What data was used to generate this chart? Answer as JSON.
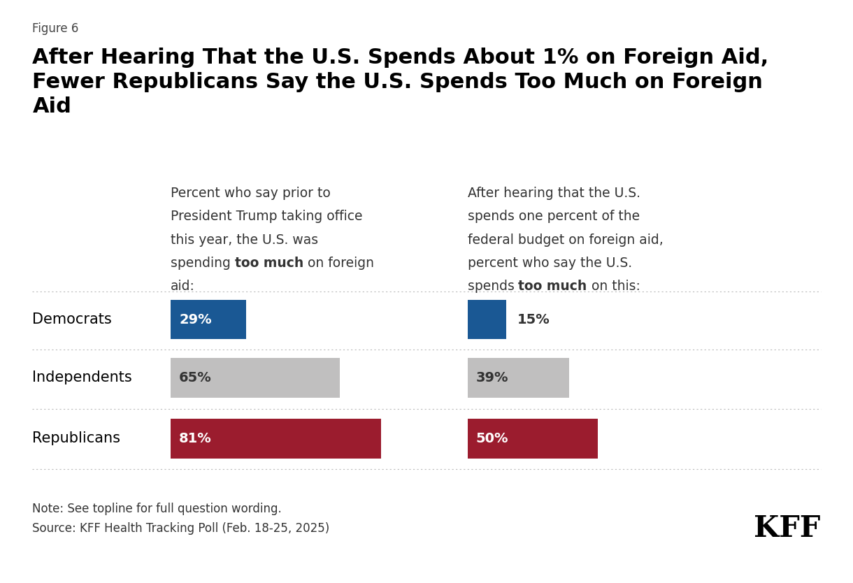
{
  "figure_label": "Figure 6",
  "title": "After Hearing That the U.S. Spends About 1% on Foreign Aid,\nFewer Republicans Say the U.S. Spends Too Much on Foreign\nAid",
  "col1_header": [
    {
      "text": "Percent who say prior to",
      "bold": false
    },
    {
      "text": "President Trump taking office",
      "bold": false
    },
    {
      "text": "this year, the U.S. was",
      "bold": false
    },
    {
      "text": [
        [
          "spending ",
          false
        ],
        [
          "too much",
          true
        ],
        [
          " on foreign",
          false
        ]
      ],
      "mixed": true
    },
    {
      "text": "aid:",
      "bold": false
    }
  ],
  "col2_header": [
    {
      "text": "After hearing that the U.S.",
      "bold": false
    },
    {
      "text": "spends one percent of the",
      "bold": false
    },
    {
      "text": "federal budget on foreign aid,",
      "bold": false
    },
    {
      "text": "percent who say the U.S.",
      "bold": false
    },
    {
      "text": [
        [
          "spends ",
          false
        ],
        [
          "too much",
          true
        ],
        [
          " on this:",
          false
        ]
      ],
      "mixed": true
    }
  ],
  "categories": [
    "Democrats",
    "Independents",
    "Republicans"
  ],
  "before_values": [
    29,
    65,
    81
  ],
  "after_values": [
    15,
    39,
    50
  ],
  "bar_colors": [
    "#1a5894",
    "#c0bfbf",
    "#9b1c2e"
  ],
  "bar_label_colors_inside": [
    "#ffffff",
    "#333333",
    "#ffffff"
  ],
  "note": "Note: See topline for full question wording.",
  "source": "Source: KFF Health Tracking Poll (Feb. 18-25, 2025)",
  "kff_logo": "KFF",
  "background_color": "#ffffff",
  "separator_color": "#bbbbbb",
  "title_fontsize": 22,
  "label_fontsize": 15,
  "bar_text_fontsize": 14,
  "header_fontsize": 13.5,
  "figure_label_fontsize": 12,
  "note_fontsize": 12
}
